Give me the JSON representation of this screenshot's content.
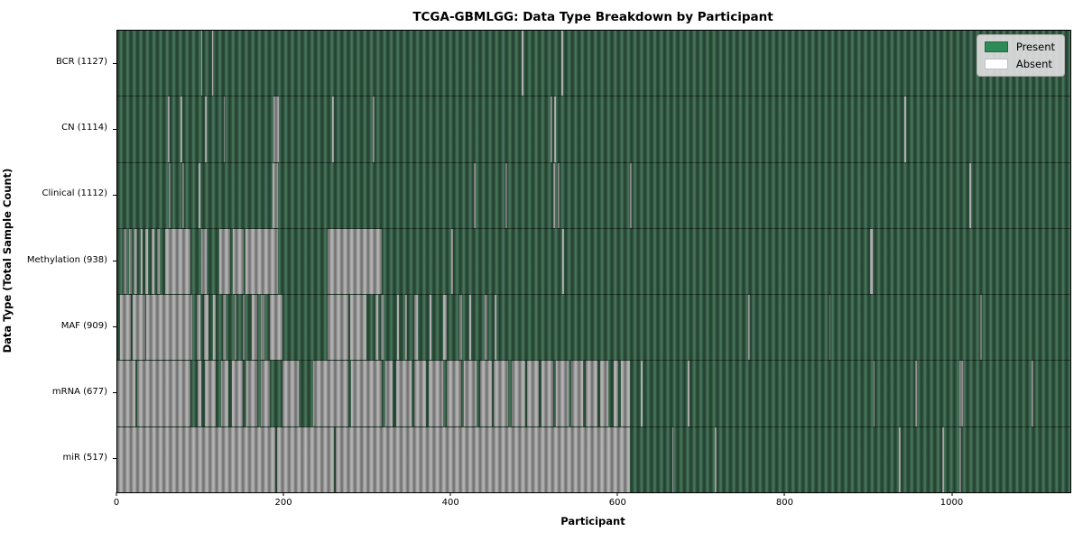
{
  "chart_data": {
    "type": "heatmap",
    "title": "TCGA-GBMLGG: Data Type Breakdown by Participant",
    "xlabel": "Participant",
    "ylabel": "Data Type (Total Sample Count)",
    "x_ticks": [
      0,
      200,
      400,
      600,
      800,
      1000
    ],
    "x_max": 1141,
    "grid": false,
    "legend_position": "upper right",
    "colors": {
      "present": "#366349",
      "absent": "#ababab"
    },
    "legend": [
      {
        "label": "Present",
        "color": "#2e8b57"
      },
      {
        "label": "Absent",
        "color": "#ffffff"
      }
    ],
    "rows": [
      {
        "label": "BCR (1127)",
        "total_samples": 1127,
        "absent": [
          [
            100,
            102
          ],
          [
            113,
            115
          ],
          [
            484,
            486
          ],
          [
            532,
            534
          ]
        ]
      },
      {
        "label": "CN (1114)",
        "total_samples": 1114,
        "absent": [
          [
            61,
            63
          ],
          [
            76,
            78
          ],
          [
            105,
            107
          ],
          [
            127,
            129
          ],
          [
            187,
            193
          ],
          [
            257,
            259
          ],
          [
            306,
            308
          ],
          [
            519,
            521
          ],
          [
            523,
            525
          ],
          [
            942,
            944
          ]
        ]
      },
      {
        "label": "Clinical (1112)",
        "total_samples": 1112,
        "absent": [
          [
            62,
            64
          ],
          [
            78,
            80
          ],
          [
            97,
            99
          ],
          [
            186,
            192
          ],
          [
            427,
            429
          ],
          [
            465,
            467
          ],
          [
            522,
            524
          ],
          [
            527,
            529
          ],
          [
            614,
            616
          ],
          [
            1020,
            1022
          ]
        ]
      },
      {
        "label": "Methylation (938)",
        "total_samples": 938,
        "absent": [
          [
            8,
            11
          ],
          [
            14,
            17
          ],
          [
            21,
            24
          ],
          [
            28,
            30
          ],
          [
            34,
            37
          ],
          [
            41,
            44
          ],
          [
            48,
            51
          ],
          [
            57,
            88
          ],
          [
            100,
            107
          ],
          [
            122,
            135
          ],
          [
            138,
            151
          ],
          [
            153,
            192
          ],
          [
            252,
            317
          ],
          [
            400,
            402
          ],
          [
            533,
            535
          ],
          [
            901,
            904
          ]
        ]
      },
      {
        "label": "MAF (909)",
        "total_samples": 909,
        "absent": [
          [
            3,
            16
          ],
          [
            18,
            33
          ],
          [
            35,
            90
          ],
          [
            95,
            99
          ],
          [
            104,
            109
          ],
          [
            115,
            118
          ],
          [
            126,
            130
          ],
          [
            141,
            143
          ],
          [
            150,
            152
          ],
          [
            161,
            168
          ],
          [
            172,
            176
          ],
          [
            183,
            198
          ],
          [
            252,
            277
          ],
          [
            279,
            298
          ],
          [
            309,
            312
          ],
          [
            316,
            319
          ],
          [
            335,
            337
          ],
          [
            345,
            347
          ],
          [
            356,
            360
          ],
          [
            374,
            376
          ],
          [
            390,
            394
          ],
          [
            410,
            413
          ],
          [
            421,
            424
          ],
          [
            440,
            443
          ],
          [
            452,
            454
          ],
          [
            755,
            757
          ],
          [
            852,
            854
          ],
          [
            1033,
            1035
          ]
        ]
      },
      {
        "label": "mRNA (677)",
        "total_samples": 677,
        "absent": [
          [
            0,
            22
          ],
          [
            24,
            88
          ],
          [
            96,
            100
          ],
          [
            105,
            118
          ],
          [
            124,
            133
          ],
          [
            137,
            150
          ],
          [
            155,
            168
          ],
          [
            172,
            183
          ],
          [
            198,
            217
          ],
          [
            234,
            277
          ],
          [
            280,
            317
          ],
          [
            321,
            330
          ],
          [
            334,
            352
          ],
          [
            356,
            370
          ],
          [
            373,
            390
          ],
          [
            394,
            412
          ],
          [
            415,
            430
          ],
          [
            434,
            448
          ],
          [
            451,
            468
          ],
          [
            472,
            488
          ],
          [
            491,
            505
          ],
          [
            508,
            522
          ],
          [
            525,
            540
          ],
          [
            543,
            558
          ],
          [
            561,
            575
          ],
          [
            578,
            588
          ],
          [
            594,
            600
          ],
          [
            603,
            614
          ],
          [
            627,
            629
          ],
          [
            683,
            685
          ],
          [
            905,
            907
          ],
          [
            955,
            957
          ],
          [
            1008,
            1012
          ],
          [
            1095,
            1097
          ]
        ]
      },
      {
        "label": "miR (517)",
        "total_samples": 517,
        "absent": [
          [
            0,
            189
          ],
          [
            191,
            259
          ],
          [
            261,
            614
          ],
          [
            664,
            666
          ],
          [
            715,
            717
          ],
          [
            936,
            938
          ],
          [
            988,
            990
          ],
          [
            1008,
            1010
          ]
        ]
      }
    ]
  }
}
